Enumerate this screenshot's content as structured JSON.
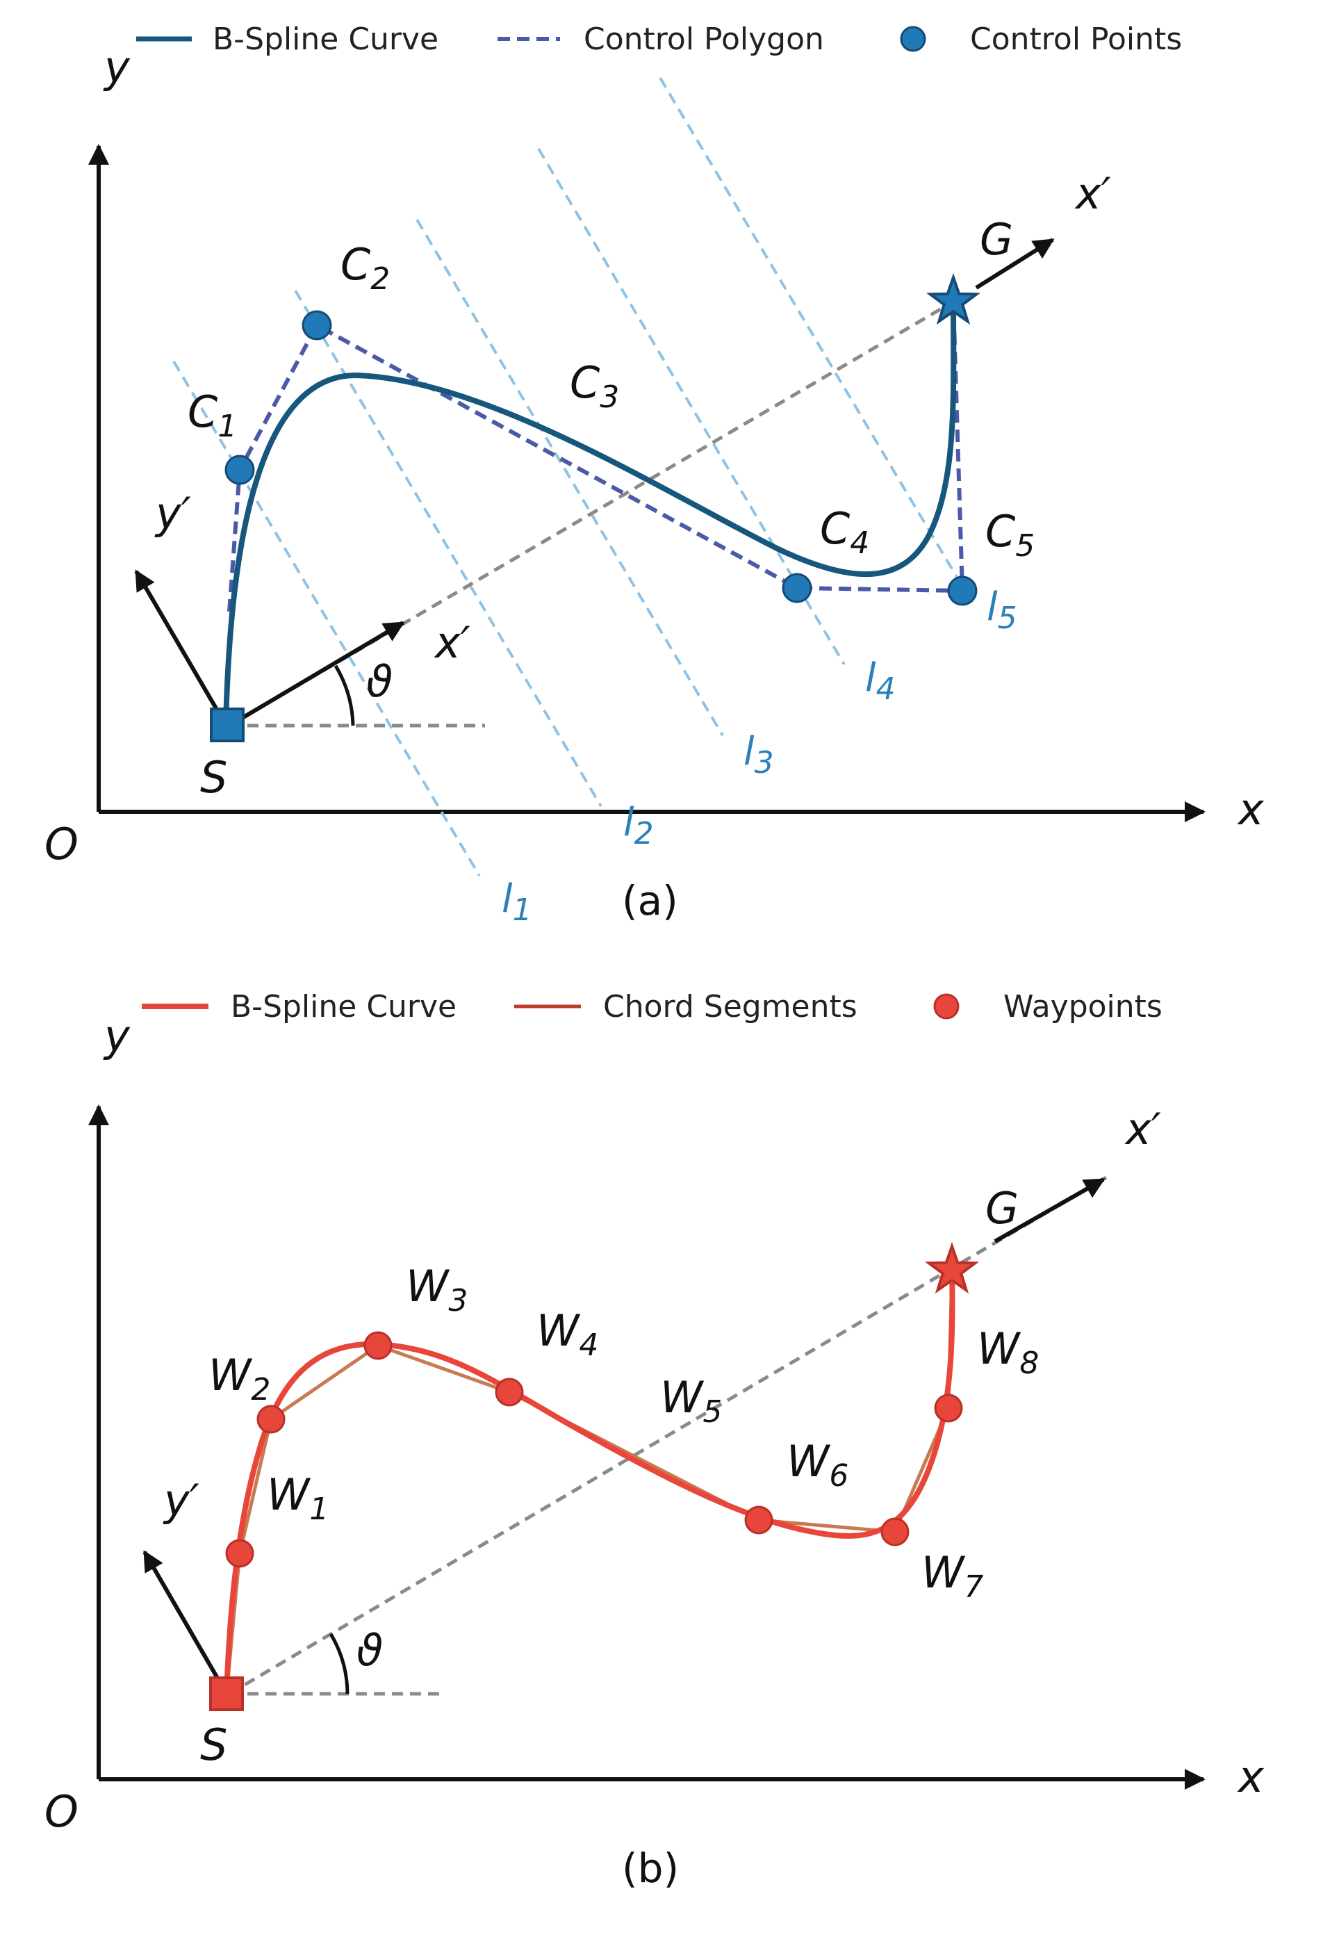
{
  "colors": {
    "blue_curve": "#17567d",
    "blue_point": "#2179b8",
    "polygon": "#4a5aa8",
    "lines_l": "#8ec3e6",
    "red_curve": "#e8463a",
    "red_chord": "#c0392b",
    "gray_dash": "#8a8a8a",
    "axis": "#111111"
  },
  "panel_a": {
    "caption": "(a)",
    "legend": {
      "curve": "B-Spline Curve",
      "polygon": "Control Polygon",
      "points": "Control Points"
    },
    "axes": {
      "x": "x",
      "y": "y",
      "origin": "O"
    },
    "start": "S",
    "goal": "G",
    "angle": "ϑ",
    "x_prime": "x′",
    "y_prime": "y′",
    "control_points": [
      {
        "base": "C",
        "sub": "1"
      },
      {
        "base": "C",
        "sub": "2"
      },
      {
        "base": "C",
        "sub": "3"
      },
      {
        "base": "C",
        "sub": "4"
      },
      {
        "base": "C",
        "sub": "5"
      }
    ],
    "lines": [
      {
        "base": "l",
        "sub": "1"
      },
      {
        "base": "l",
        "sub": "2"
      },
      {
        "base": "l",
        "sub": "3"
      },
      {
        "base": "l",
        "sub": "4"
      },
      {
        "base": "l",
        "sub": "5"
      }
    ]
  },
  "panel_b": {
    "caption": "(b)",
    "legend": {
      "curve": "B-Spline Curve",
      "chords": "Chord Segments",
      "points": "Waypoints"
    },
    "axes": {
      "x": "x",
      "y": "y",
      "origin": "O"
    },
    "start": "S",
    "goal": "G",
    "angle": "ϑ",
    "x_prime": "x′",
    "y_prime": "y′",
    "waypoints": [
      {
        "base": "W",
        "sub": "1"
      },
      {
        "base": "W",
        "sub": "2"
      },
      {
        "base": "W",
        "sub": "3"
      },
      {
        "base": "W",
        "sub": "4"
      },
      {
        "base": "W",
        "sub": "5"
      },
      {
        "base": "W",
        "sub": "6"
      },
      {
        "base": "W",
        "sub": "7"
      },
      {
        "base": "W",
        "sub": "8"
      }
    ]
  }
}
